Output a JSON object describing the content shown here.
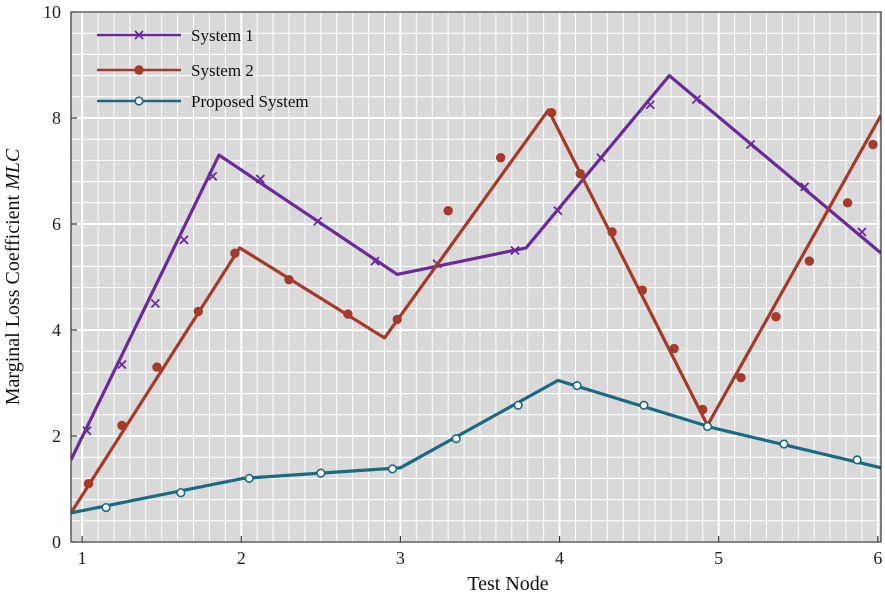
{
  "chart_data": {
    "type": "line",
    "title": "",
    "xlabel": "Test Node",
    "ylabel": "Marginal Loss Coefficient",
    "ylabel_italic": "MLC",
    "xlim": [
      0.93,
      6.02
    ],
    "ylim": [
      0,
      10
    ],
    "x_ticks": [
      {
        "value": 1,
        "label": "1"
      },
      {
        "value": 2,
        "label": "2"
      },
      {
        "value": 3,
        "label": "3"
      },
      {
        "value": 4,
        "label": "4"
      },
      {
        "value": 5,
        "label": "5"
      },
      {
        "value": 6,
        "label": "6"
      }
    ],
    "y_ticks": [
      {
        "value": 0,
        "label": "0"
      },
      {
        "value": 2,
        "label": "2"
      },
      {
        "value": 4,
        "label": "4"
      },
      {
        "value": 6,
        "label": "6"
      },
      {
        "value": 8,
        "label": "8"
      },
      {
        "value": 10,
        "label": "10"
      }
    ],
    "grid": true,
    "legend_position": "top-left",
    "series": [
      {
        "name": "System 1",
        "color": "#6a2a9a",
        "marker": "x",
        "x": [
          0.93,
          1.86,
          2.98,
          3.79,
          4.69,
          6.02
        ],
        "y": [
          1.55,
          7.3,
          5.05,
          5.55,
          8.8,
          5.45
        ],
        "markers_x": [
          1.03,
          1.25,
          1.46,
          1.64,
          1.82,
          2.12,
          2.48,
          2.84,
          3.23,
          3.72,
          3.99,
          4.26,
          4.57,
          4.86,
          5.2,
          5.54,
          5.9
        ],
        "markers_y": [
          2.1,
          3.35,
          4.5,
          5.7,
          6.9,
          6.85,
          6.05,
          5.3,
          5.25,
          5.5,
          6.25,
          7.25,
          8.25,
          8.35,
          7.5,
          6.7,
          5.85
        ]
      },
      {
        "name": "System 2",
        "color": "#a53a2a",
        "marker": "filled-circle",
        "x": [
          0.93,
          1.99,
          2.9,
          3.93,
          4.93,
          6.02
        ],
        "y": [
          0.55,
          5.55,
          3.85,
          8.15,
          2.2,
          8.05
        ],
        "markers_x": [
          1.04,
          1.25,
          1.47,
          1.73,
          1.96,
          2.3,
          2.67,
          2.98,
          3.3,
          3.63,
          3.95,
          4.13,
          4.33,
          4.52,
          4.72,
          4.9,
          5.14,
          5.36,
          5.57,
          5.81,
          5.97
        ],
        "markers_y": [
          1.1,
          2.2,
          3.3,
          4.35,
          5.45,
          4.95,
          4.3,
          4.2,
          6.25,
          7.25,
          8.1,
          6.95,
          5.85,
          4.75,
          3.65,
          2.5,
          3.1,
          4.25,
          5.3,
          6.4,
          7.5
        ]
      },
      {
        "name": "Proposed System",
        "color": "#1a6a82",
        "marker": "open-circle",
        "x": [
          0.93,
          2.01,
          3.0,
          3.99,
          4.97,
          6.02
        ],
        "y": [
          0.55,
          1.2,
          1.4,
          3.05,
          2.15,
          1.4
        ],
        "markers_x": [
          1.15,
          1.62,
          2.05,
          2.5,
          2.95,
          3.35,
          3.74,
          4.11,
          4.53,
          4.93,
          5.41,
          5.87
        ],
        "markers_y": [
          0.65,
          0.93,
          1.2,
          1.3,
          1.38,
          1.95,
          2.58,
          2.95,
          2.58,
          2.18,
          1.85,
          1.55
        ]
      }
    ]
  }
}
